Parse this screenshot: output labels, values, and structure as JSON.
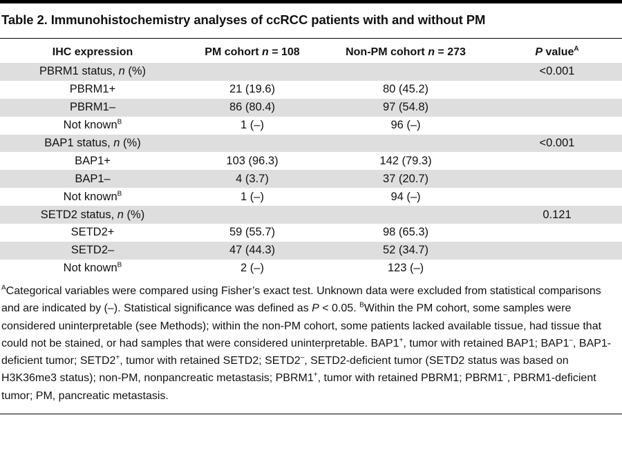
{
  "caption": "Table 2. Immunohistochemistry analyses of ccRCC patients with and without PM",
  "columns": {
    "expression": "IHC expression",
    "pm_prefix": "PM cohort ",
    "pm_n": "n",
    "pm_suffix": " = 108",
    "nonpm_prefix": "Non-PM cohort ",
    "nonpm_n": "n",
    "nonpm_suffix": " = 273",
    "p_italic": "P",
    "p_rest": " value",
    "p_sup": "A"
  },
  "rows": [
    {
      "label": "PBRM1 status, ",
      "label_italic": "n",
      "label_rest": " (%)",
      "pm": "",
      "nonpm": "",
      "p": "<0.001",
      "shade": true
    },
    {
      "label": "PBRM1+",
      "label_sup": "",
      "pm": "21 (19.6)",
      "nonpm": "80 (45.2)",
      "p": "",
      "shade": false
    },
    {
      "label": "PBRM1–",
      "label_sup": "",
      "pm": "86 (80.4)",
      "nonpm": "97 (54.8)",
      "p": "",
      "shade": true
    },
    {
      "label": "Not known",
      "label_sup": "B",
      "pm": "1 (–)",
      "nonpm": "96 (–)",
      "p": "",
      "shade": false
    },
    {
      "label": "BAP1 status, ",
      "label_italic": "n",
      "label_rest": " (%)",
      "pm": "",
      "nonpm": "",
      "p": "<0.001",
      "shade": true
    },
    {
      "label": "BAP1+",
      "label_sup": "",
      "pm": "103 (96.3)",
      "nonpm": "142 (79.3)",
      "p": "",
      "shade": false
    },
    {
      "label": "BAP1–",
      "label_sup": "",
      "pm": "4 (3.7)",
      "nonpm": "37 (20.7)",
      "p": "",
      "shade": true
    },
    {
      "label": "Not known",
      "label_sup": "B",
      "pm": "1 (–)",
      "nonpm": "94 (–)",
      "p": "",
      "shade": false
    },
    {
      "label": "SETD2 status, ",
      "label_italic": "n",
      "label_rest": " (%)",
      "pm": "",
      "nonpm": "",
      "p": "0.121",
      "shade": true
    },
    {
      "label": "SETD2+",
      "label_sup": "",
      "pm": "59 (55.7)",
      "nonpm": "98 (65.3)",
      "p": "",
      "shade": false
    },
    {
      "label": "SETD2–",
      "label_sup": "",
      "pm": "47 (44.3)",
      "nonpm": "52 (34.7)",
      "p": "",
      "shade": true
    },
    {
      "label": "Not known",
      "label_sup": "B",
      "pm": "2 (–)",
      "nonpm": "123 (–)",
      "p": "",
      "shade": false
    }
  ],
  "footnote": {
    "a_mark": "A",
    "a_text": "Categorical variables were compared using Fisher’s exact test. Unknown data were excluded from statistical comparisons and are indicated by (–). Statistical significance was defined as ",
    "a_p": "P",
    "a_text2": " < 0.05. ",
    "b_mark": "B",
    "b_text": "Within the PM cohort, some samples were considered uninterpretable (see Methods); within the non-PM cohort, some patients lacked available tissue, had tissue that could not be stained, or had samples that were considered uninterpretable. BAP1",
    "s1": "+",
    "t1": ", tumor with retained BAP1; BAP1",
    "s2": "–",
    "t2": ", BAP1-deficient tumor; SETD2",
    "s3": "+",
    "t3": ", tumor with retained SETD2; SETD2",
    "s4": "–",
    "t4": ", SETD2-deficient tumor (SETD2 status was based on H3K36me3 status); non-PM, nonpancreatic metastasis; PBRM1",
    "s5": "+",
    "t5": ", tumor with retained PBRM1; PBRM1",
    "s6": "–",
    "t6": ", PBRM1-deficient tumor; PM, pancreatic metastasis."
  }
}
